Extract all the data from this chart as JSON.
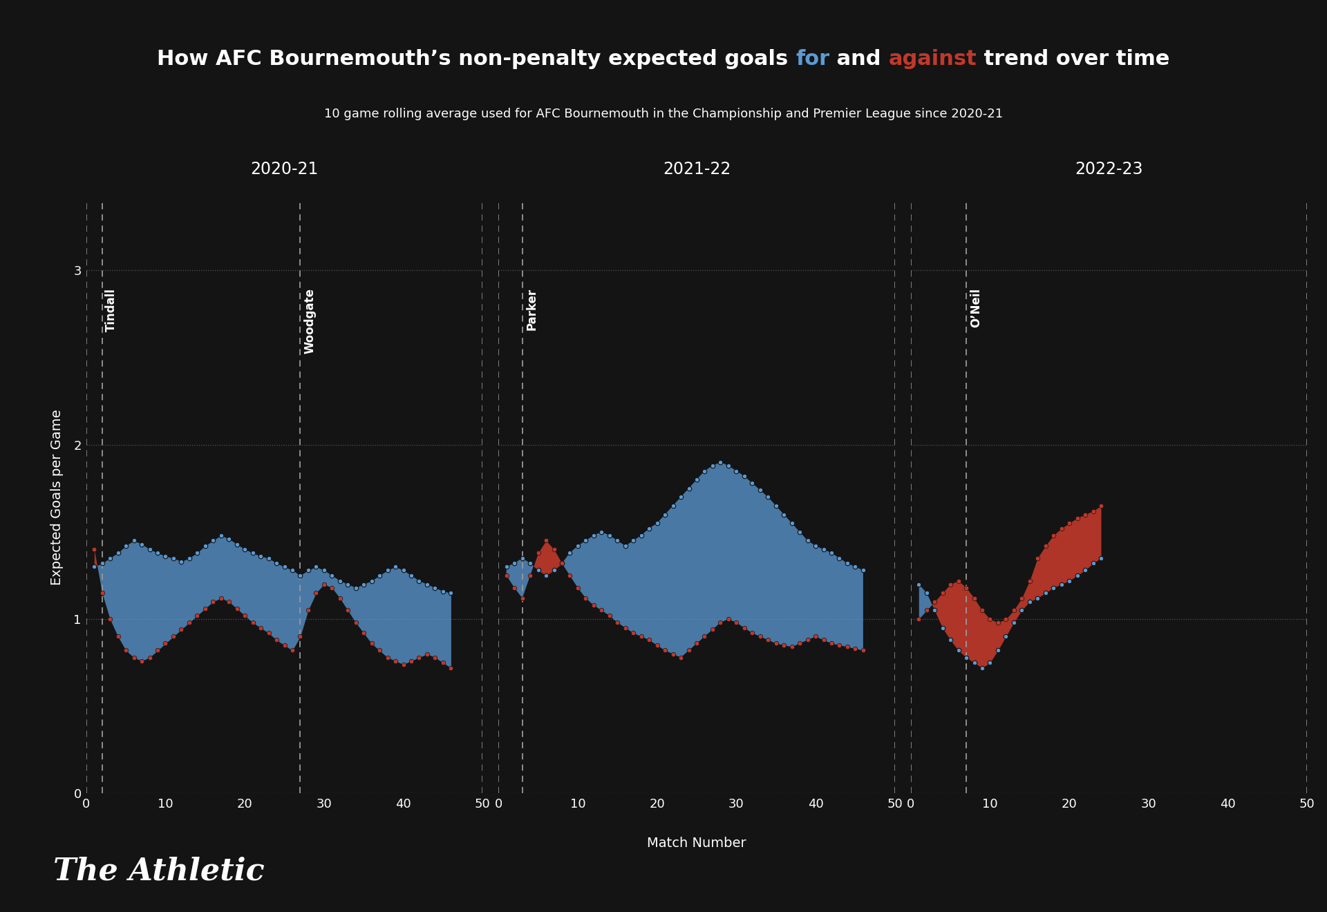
{
  "title_parts": [
    {
      "text": "How AFC Bournemouth’s non-penalty expected goals ",
      "color": "#ffffff"
    },
    {
      "text": "for",
      "color": "#5b9bd5"
    },
    {
      "text": " and ",
      "color": "#ffffff"
    },
    {
      "text": "against",
      "color": "#c0392b"
    },
    {
      "text": " trend over time",
      "color": "#ffffff"
    }
  ],
  "subtitle": "10 game rolling average used for AFC Bournemouth in the Championship and Premier League since 2020-21",
  "xlabel": "Match Number",
  "ylabel": "Expected Goals per Game",
  "background_color": "#141414",
  "for_color": "#5b9bd5",
  "against_color": "#c0392b",
  "ylim": [
    0,
    3.4
  ],
  "yticks": [
    0,
    1,
    2,
    3
  ],
  "xticks": [
    0,
    10,
    20,
    30,
    40,
    50
  ],
  "title_fontsize": 22,
  "subtitle_fontsize": 13,
  "axis_label_fontsize": 14,
  "tick_fontsize": 13,
  "season_label_fontsize": 17,
  "manager_fontsize": 12,
  "footer_fontsize": 32,
  "footer_text": "The Athletic",
  "seasons": [
    {
      "label": "2020-21",
      "managers": [
        {
          "name": "Tindall",
          "x": 2
        },
        {
          "name": "Woodgate",
          "x": 27
        }
      ],
      "xfor": [
        1,
        2,
        3,
        4,
        5,
        6,
        7,
        8,
        9,
        10,
        11,
        12,
        13,
        14,
        15,
        16,
        17,
        18,
        19,
        20,
        21,
        22,
        23,
        24,
        25,
        26,
        27,
        28,
        29,
        30,
        31,
        32,
        33,
        34,
        35,
        36,
        37,
        38,
        39,
        40,
        41,
        42,
        43,
        44,
        45,
        46
      ],
      "yfor": [
        1.3,
        1.32,
        1.35,
        1.38,
        1.42,
        1.45,
        1.43,
        1.4,
        1.38,
        1.36,
        1.35,
        1.33,
        1.35,
        1.38,
        1.42,
        1.45,
        1.48,
        1.46,
        1.43,
        1.4,
        1.38,
        1.36,
        1.35,
        1.32,
        1.3,
        1.28,
        1.25,
        1.28,
        1.3,
        1.28,
        1.25,
        1.22,
        1.2,
        1.18,
        1.2,
        1.22,
        1.25,
        1.28,
        1.3,
        1.28,
        1.25,
        1.22,
        1.2,
        1.18,
        1.16,
        1.15
      ],
      "yagainst": [
        1.4,
        1.15,
        1.0,
        0.9,
        0.82,
        0.78,
        0.76,
        0.78,
        0.82,
        0.86,
        0.9,
        0.94,
        0.98,
        1.02,
        1.06,
        1.1,
        1.12,
        1.1,
        1.06,
        1.02,
        0.98,
        0.95,
        0.92,
        0.88,
        0.85,
        0.82,
        0.9,
        1.05,
        1.15,
        1.2,
        1.18,
        1.12,
        1.05,
        0.98,
        0.92,
        0.86,
        0.82,
        0.78,
        0.76,
        0.74,
        0.76,
        0.78,
        0.8,
        0.78,
        0.75,
        0.72
      ]
    },
    {
      "label": "2021-22",
      "managers": [
        {
          "name": "Parker",
          "x": 3
        }
      ],
      "xfor": [
        1,
        2,
        3,
        4,
        5,
        6,
        7,
        8,
        9,
        10,
        11,
        12,
        13,
        14,
        15,
        16,
        17,
        18,
        19,
        20,
        21,
        22,
        23,
        24,
        25,
        26,
        27,
        28,
        29,
        30,
        31,
        32,
        33,
        34,
        35,
        36,
        37,
        38,
        39,
        40,
        41,
        42,
        43,
        44,
        45,
        46
      ],
      "yfor": [
        1.3,
        1.32,
        1.35,
        1.32,
        1.28,
        1.25,
        1.28,
        1.32,
        1.38,
        1.42,
        1.45,
        1.48,
        1.5,
        1.48,
        1.45,
        1.42,
        1.45,
        1.48,
        1.52,
        1.55,
        1.6,
        1.65,
        1.7,
        1.75,
        1.8,
        1.85,
        1.88,
        1.9,
        1.88,
        1.85,
        1.82,
        1.78,
        1.74,
        1.7,
        1.65,
        1.6,
        1.55,
        1.5,
        1.45,
        1.42,
        1.4,
        1.38,
        1.35,
        1.32,
        1.3,
        1.28
      ],
      "yagainst": [
        1.25,
        1.18,
        1.12,
        1.25,
        1.38,
        1.45,
        1.4,
        1.32,
        1.25,
        1.18,
        1.12,
        1.08,
        1.05,
        1.02,
        0.98,
        0.95,
        0.92,
        0.9,
        0.88,
        0.85,
        0.82,
        0.8,
        0.78,
        0.82,
        0.86,
        0.9,
        0.94,
        0.98,
        1.0,
        0.98,
        0.95,
        0.92,
        0.9,
        0.88,
        0.86,
        0.85,
        0.84,
        0.86,
        0.88,
        0.9,
        0.88,
        0.86,
        0.85,
        0.84,
        0.83,
        0.82
      ]
    },
    {
      "label": "2022-23",
      "managers": [
        {
          "name": "O’Neil",
          "x": 7
        }
      ],
      "xfor": [
        1,
        2,
        3,
        4,
        5,
        6,
        7,
        8,
        9,
        10,
        11,
        12,
        13,
        14,
        15,
        16,
        17,
        18,
        19,
        20,
        21,
        22,
        23,
        24
      ],
      "yfor": [
        1.2,
        1.15,
        1.05,
        0.95,
        0.88,
        0.82,
        0.78,
        0.75,
        0.72,
        0.75,
        0.82,
        0.9,
        0.98,
        1.05,
        1.1,
        1.12,
        1.15,
        1.18,
        1.2,
        1.22,
        1.25,
        1.28,
        1.32,
        1.35
      ],
      "yagainst": [
        1.0,
        1.05,
        1.1,
        1.15,
        1.2,
        1.22,
        1.18,
        1.12,
        1.05,
        1.0,
        0.98,
        1.0,
        1.05,
        1.12,
        1.22,
        1.35,
        1.42,
        1.48,
        1.52,
        1.55,
        1.58,
        1.6,
        1.62,
        1.65
      ]
    }
  ]
}
